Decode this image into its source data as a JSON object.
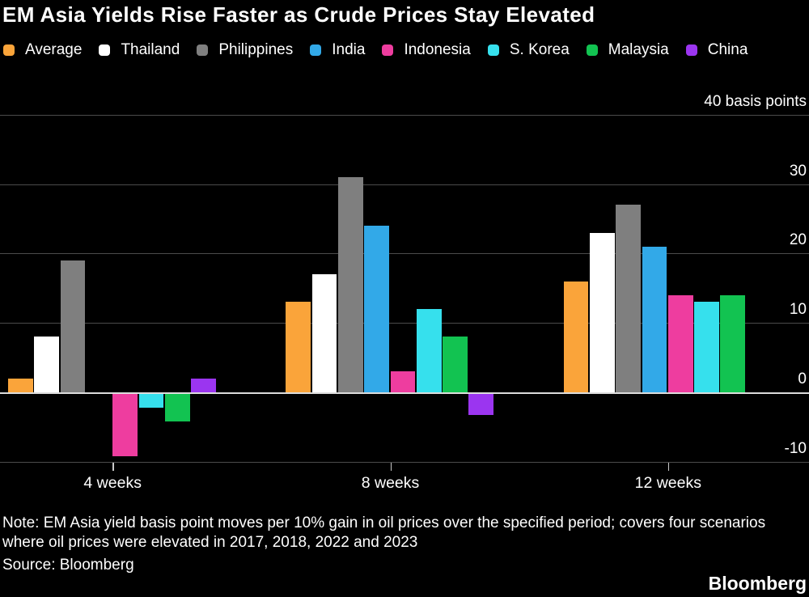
{
  "title": "EM Asia Yields Rise Faster as Crude Prices Stay Elevated",
  "chart_data": {
    "type": "bar",
    "categories": [
      "4 weeks",
      "8 weeks",
      "12 weeks"
    ],
    "series": [
      {
        "name": "Average",
        "color": "#FAA43A",
        "values": [
          2,
          13,
          16
        ]
      },
      {
        "name": "Thailand",
        "color": "#FFFFFF",
        "values": [
          8,
          17,
          23
        ]
      },
      {
        "name": "Philippines",
        "color": "#7F7F7F",
        "values": [
          19,
          31,
          27
        ]
      },
      {
        "name": "India",
        "color": "#32A9E8",
        "values": [
          0,
          24,
          21
        ]
      },
      {
        "name": "Indonesia",
        "color": "#EE3D9F",
        "values": [
          -9,
          3,
          14
        ]
      },
      {
        "name": "S. Korea",
        "color": "#36E0ED",
        "values": [
          -2,
          12,
          13
        ]
      },
      {
        "name": "Malaysia",
        "color": "#12C351",
        "values": [
          -4,
          8,
          14
        ]
      },
      {
        "name": "China",
        "color": "#9B35F0",
        "values": [
          2,
          -3,
          0
        ]
      }
    ],
    "ylabel": "basis points",
    "ylim": [
      -10,
      40
    ],
    "yticks": [
      {
        "value": 40,
        "label": "40 basis points"
      },
      {
        "value": 30,
        "label": "30"
      },
      {
        "value": 20,
        "label": "20"
      },
      {
        "value": 10,
        "label": "10"
      },
      {
        "value": 0,
        "label": "0"
      },
      {
        "value": -10,
        "label": "-10"
      }
    ],
    "grid": "horizontal",
    "legend_position": "top"
  },
  "footer": {
    "note": "Note: EM Asia yield basis point moves per 10% gain in oil prices over the specified period; covers four scenarios where oil prices were elevated in 2017, 2018, 2022 and 2023",
    "source": "Source: Bloomberg",
    "logo": "Bloomberg"
  },
  "colors": {
    "background": "#000000",
    "text": "#FFFFFF",
    "gridline": "#4B4B4B",
    "zero_line": "#DCDCDC"
  }
}
